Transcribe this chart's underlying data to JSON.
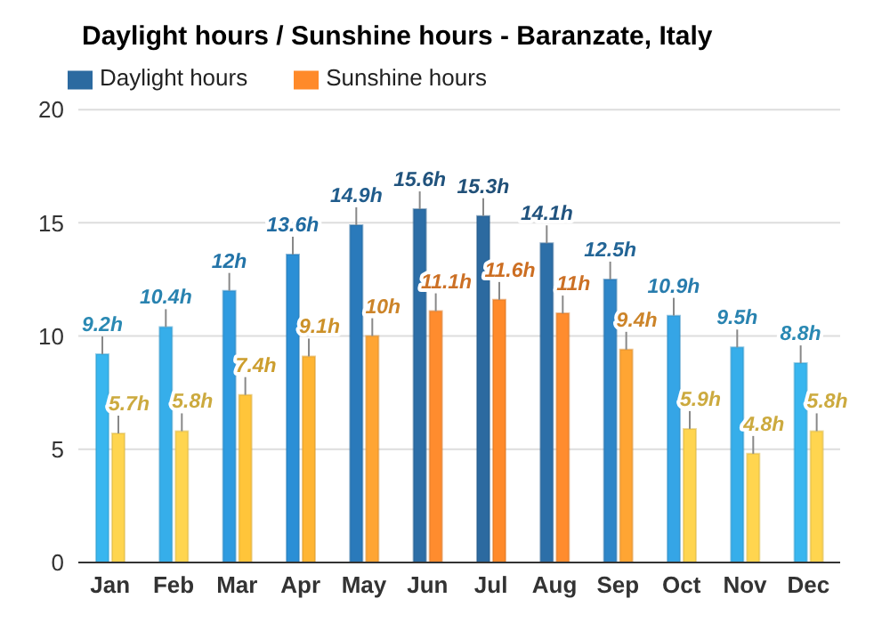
{
  "chart_data": {
    "type": "bar",
    "title": "Daylight hours / Sunshine hours - Baranzate, Italy",
    "categories": [
      "Jan",
      "Feb",
      "Mar",
      "Apr",
      "May",
      "Jun",
      "Jul",
      "Aug",
      "Sep",
      "Oct",
      "Nov",
      "Dec"
    ],
    "series": [
      {
        "name": "Daylight hours",
        "color": "#2c6aa0",
        "values": [
          9.2,
          10.4,
          12,
          13.6,
          14.9,
          15.6,
          15.3,
          14.1,
          12.5,
          10.9,
          9.5,
          8.8
        ],
        "value_labels": [
          "9.2h",
          "10.4h",
          "12h",
          "13.6h",
          "14.9h",
          "15.6h",
          "15.3h",
          "14.1h",
          "12.5h",
          "10.9h",
          "9.5h",
          "8.8h"
        ],
        "colors": [
          "#38b6ef",
          "#36aeea",
          "#2f9be0",
          "#2b8fd6",
          "#2a7abb",
          "#2c6ea7",
          "#2c6aa0",
          "#2c6fa8",
          "#2e86c8",
          "#35a5e6",
          "#36aeea",
          "#38b6ef"
        ]
      },
      {
        "name": "Sunshine hours",
        "color": "#ff8a2a",
        "values": [
          5.7,
          5.8,
          7.4,
          9.1,
          10,
          11.1,
          11.6,
          11,
          9.4,
          5.9,
          4.8,
          5.8
        ],
        "value_labels": [
          "5.7h",
          "5.8h",
          "7.4h",
          "9.1h",
          "10h",
          "11.1h",
          "11.6h",
          "11h",
          "9.4h",
          "5.9h",
          "4.8h",
          "5.8h"
        ],
        "colors": [
          "#ffd54f",
          "#ffd54f",
          "#ffc53a",
          "#ffb533",
          "#ffa533",
          "#ff8c2e",
          "#ff8a2a",
          "#ff8c2e",
          "#ffa533",
          "#ffd54f",
          "#ffd54f",
          "#ffd54f"
        ]
      }
    ],
    "ylim": [
      0,
      20
    ],
    "yticks": [
      0,
      5,
      10,
      15,
      20
    ],
    "grid": "y",
    "legend": "top left"
  }
}
